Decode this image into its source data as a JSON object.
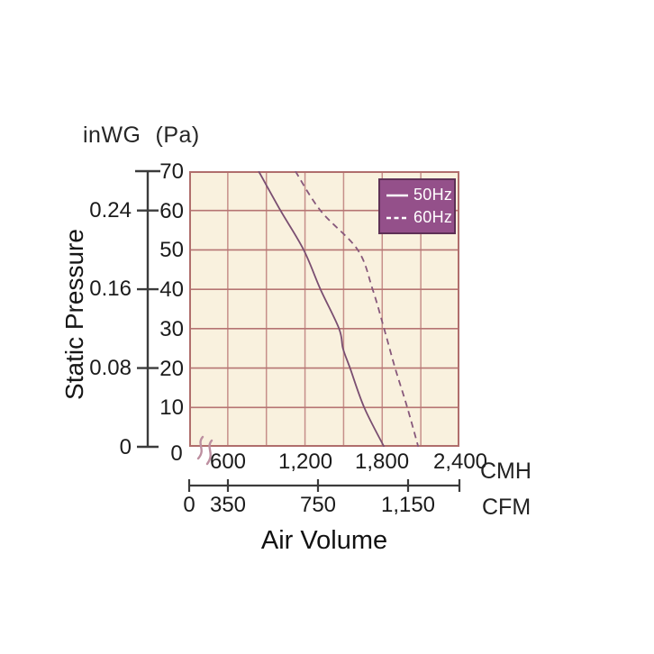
{
  "labels": {
    "unit_left_primary": "inWG",
    "unit_left_secondary": "(Pa)",
    "y_axis_title": "Static Pressure",
    "x_axis_title": "Air Volume",
    "cmh_unit": "CMH",
    "cfm_unit": "CFM",
    "origin_zero": "0"
  },
  "icons": {
    "axis_break": "scale-break-squiggle"
  },
  "axes": {
    "pa_ticks": [
      "70",
      "60",
      "50",
      "40",
      "30",
      "20",
      "10"
    ],
    "inwg_ticks": [
      "0.24",
      "0.16",
      "0.08",
      "0"
    ],
    "cmh_ticks": [
      "600",
      "1,200",
      "1,800",
      "2,400"
    ],
    "cfm_ticks": [
      "0",
      "350",
      "750",
      "1,150"
    ]
  },
  "chart_data": {
    "type": "line",
    "title": "Fan performance curve: static pressure vs air volume",
    "xlabel": "Air Volume",
    "ylabel": "Static Pressure",
    "x_unit_primary": "CMH",
    "x_unit_secondary": "CFM",
    "y_unit_primary": "Pa",
    "y_unit_secondary": "inWG",
    "x_range_cmh": [
      300,
      2400
    ],
    "y_range_pa": [
      0,
      70
    ],
    "x_grid_step_cmh": 300,
    "y_grid_step_pa": 10,
    "x_axis_break": true,
    "grid": true,
    "legend_position": "top-right",
    "colors": {
      "plot_background": "#f9f1de",
      "grid_horizontal": "#b67573",
      "grid_vertical": "#c68f8a",
      "plot_border": "#b06e6c",
      "series_50hz": "#7a4e71",
      "series_60hz": "#87587b",
      "legend_background": "#94508a",
      "legend_border": "#5e3156",
      "legend_text": "#ffffff",
      "axis_ink": "#3b3b3b",
      "break_mark": "#bd8fa0"
    },
    "series": [
      {
        "name": "50Hz",
        "style": "solid",
        "points_cmh_pa": [
          [
            840,
            70
          ],
          [
            1010,
            60
          ],
          [
            1190,
            50
          ],
          [
            1320,
            40
          ],
          [
            1465,
            30
          ],
          [
            1495,
            25
          ],
          [
            1550,
            20
          ],
          [
            1660,
            10
          ],
          [
            1815,
            0
          ]
        ]
      },
      {
        "name": "60Hz",
        "style": "dashed",
        "points_cmh_pa": [
          [
            1125,
            70
          ],
          [
            1320,
            60
          ],
          [
            1610,
            50
          ],
          [
            1725,
            40
          ],
          [
            1815,
            30
          ],
          [
            1900,
            20
          ],
          [
            1995,
            10
          ],
          [
            2080,
            0
          ]
        ]
      }
    ]
  }
}
